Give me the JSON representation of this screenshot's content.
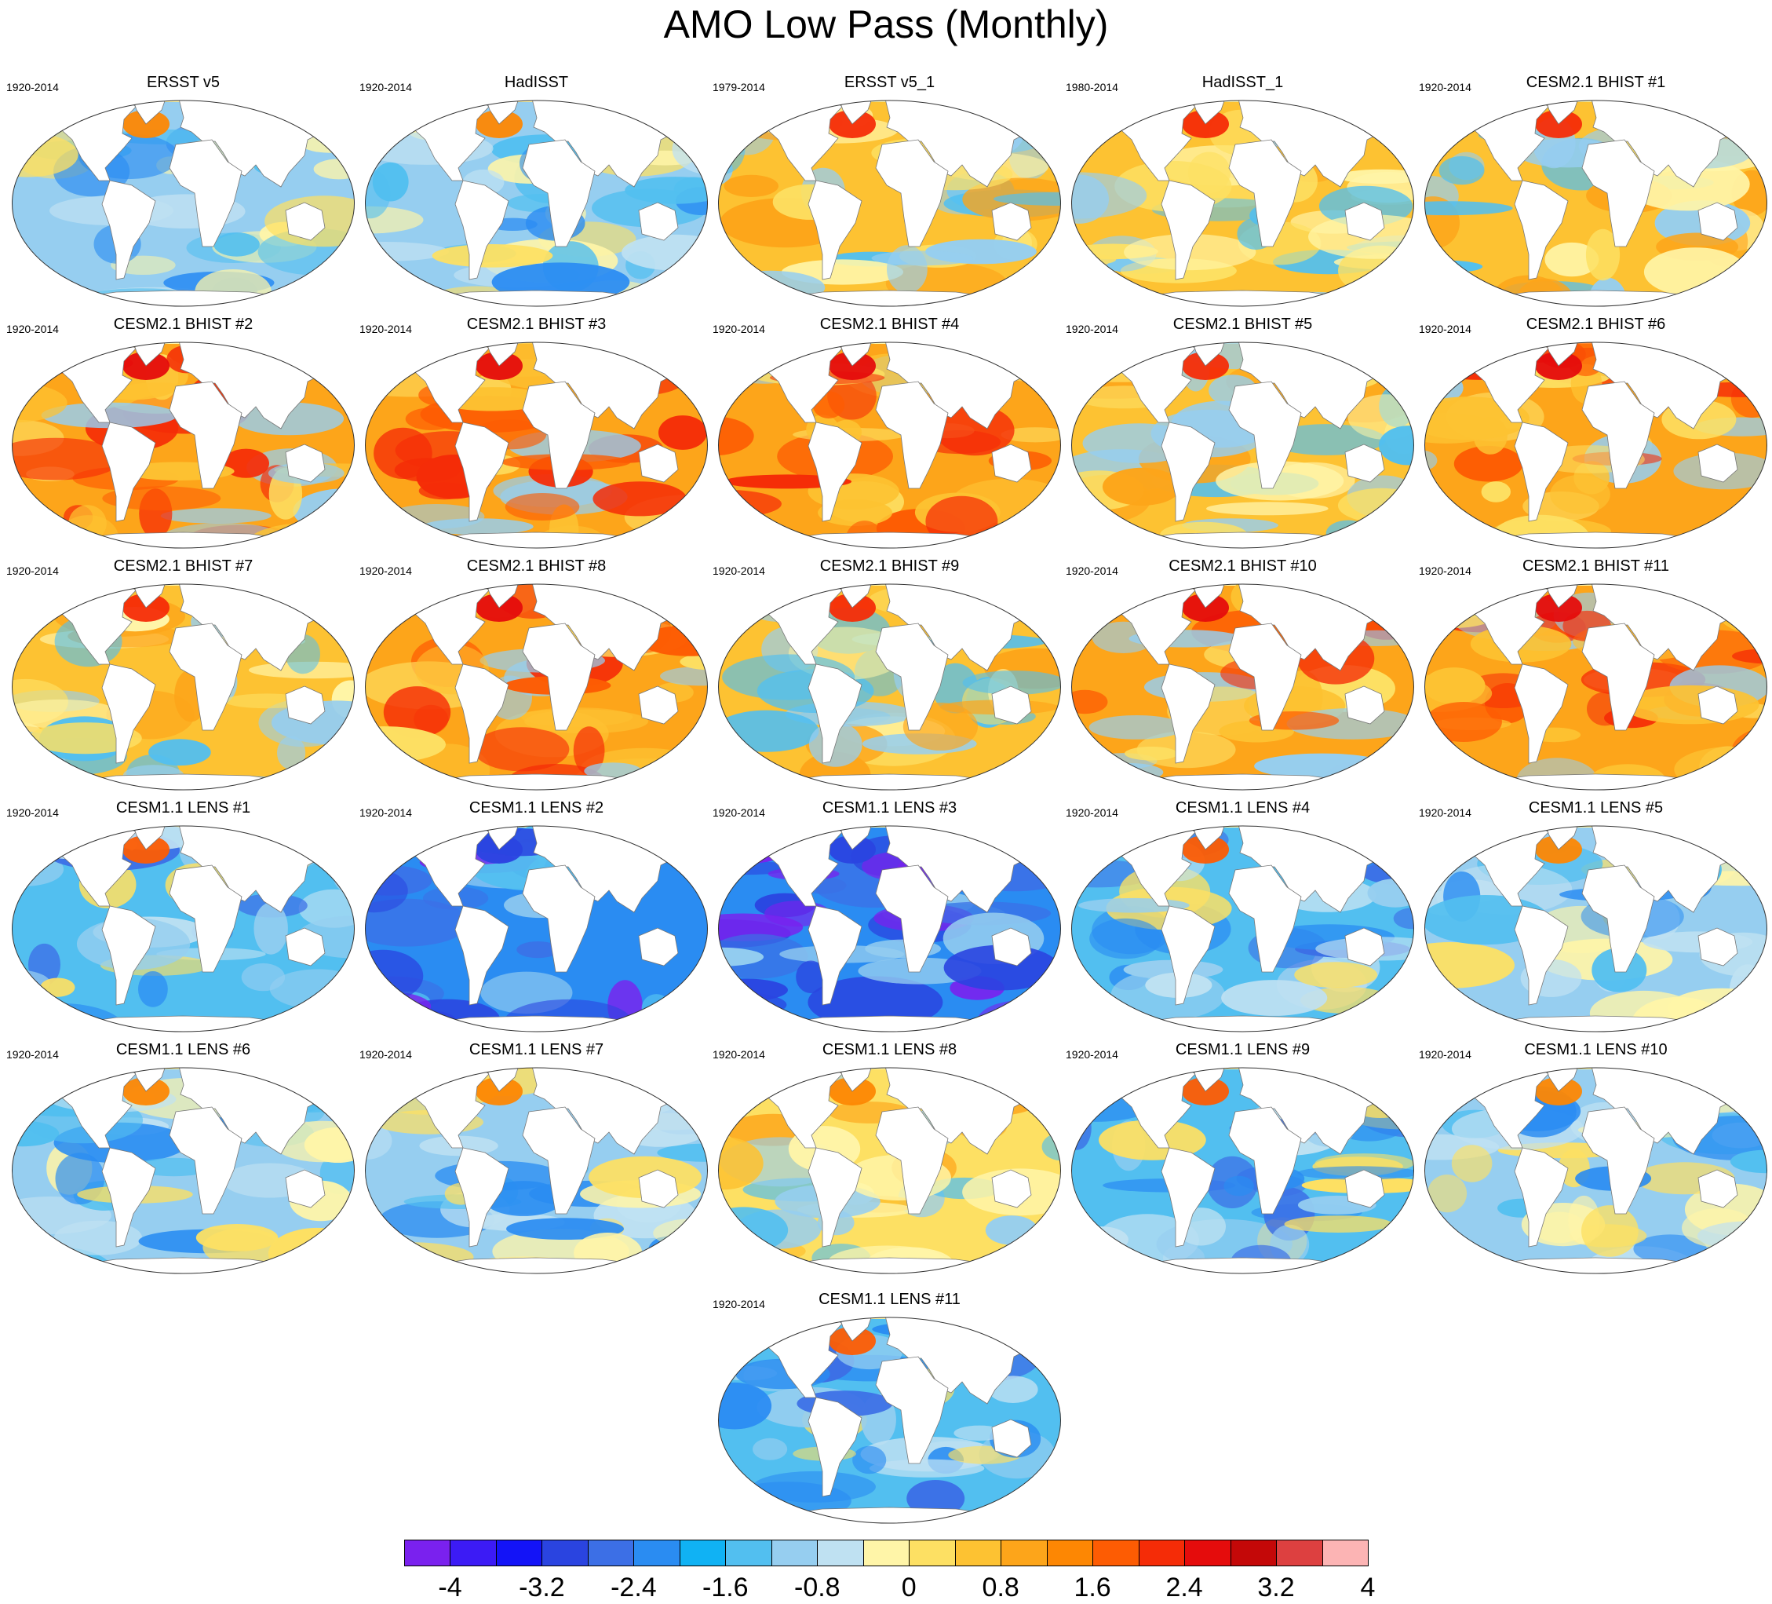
{
  "title": "AMO Low Pass (Monthly)",
  "panels": [
    {
      "title": "ERSST v5",
      "period": "1920-2014",
      "style": "obs"
    },
    {
      "title": "HadISST",
      "period": "1920-2014",
      "style": "obs"
    },
    {
      "title": "ERSST v5_1",
      "period": "1979-2014",
      "style": "warm"
    },
    {
      "title": "HadISST_1",
      "period": "1980-2014",
      "style": "warm"
    },
    {
      "title": "CESM2.1 BHIST #1",
      "period": "1920-2014",
      "style": "warm"
    },
    {
      "title": "CESM2.1 BHIST #2",
      "period": "1920-2014",
      "style": "hot"
    },
    {
      "title": "CESM2.1 BHIST #3",
      "period": "1920-2014",
      "style": "hot"
    },
    {
      "title": "CESM2.1 BHIST #4",
      "period": "1920-2014",
      "style": "hot"
    },
    {
      "title": "CESM2.1 BHIST #5",
      "period": "1920-2014",
      "style": "warm"
    },
    {
      "title": "CESM2.1 BHIST #6",
      "period": "1920-2014",
      "style": "hot"
    },
    {
      "title": "CESM2.1 BHIST #7",
      "period": "1920-2014",
      "style": "warm"
    },
    {
      "title": "CESM2.1 BHIST #8",
      "period": "1920-2014",
      "style": "hot"
    },
    {
      "title": "CESM2.1 BHIST #9",
      "period": "1920-2014",
      "style": "warm"
    },
    {
      "title": "CESM2.1 BHIST #10",
      "period": "1920-2014",
      "style": "hot"
    },
    {
      "title": "CESM2.1 BHIST #11",
      "period": "1920-2014",
      "style": "hot"
    },
    {
      "title": "CESM1.1 LENS #1",
      "period": "1920-2014",
      "style": "cold"
    },
    {
      "title": "CESM1.1 LENS #2",
      "period": "1920-2014",
      "style": "colder"
    },
    {
      "title": "CESM1.1 LENS #3",
      "period": "1920-2014",
      "style": "colder"
    },
    {
      "title": "CESM1.1 LENS #4",
      "period": "1920-2014",
      "style": "cold"
    },
    {
      "title": "CESM1.1 LENS #5",
      "period": "1920-2014",
      "style": "cool"
    },
    {
      "title": "CESM1.1 LENS #6",
      "period": "1920-2014",
      "style": "cool"
    },
    {
      "title": "CESM1.1 LENS #7",
      "period": "1920-2014",
      "style": "cool"
    },
    {
      "title": "CESM1.1 LENS #8",
      "period": "1920-2014",
      "style": "mixed"
    },
    {
      "title": "CESM1.1 LENS #9",
      "period": "1920-2014",
      "style": "cold"
    },
    {
      "title": "CESM1.1 LENS #10",
      "period": "1920-2014",
      "style": "cool"
    },
    {
      "title": "CESM1.1 LENS #11",
      "period": "1920-2014",
      "style": "cold"
    }
  ],
  "colorbar": {
    "colors": [
      "#7a21ee",
      "#3c1bf5",
      "#1313f7",
      "#2a44e0",
      "#3c6fe6",
      "#2a8cf2",
      "#10b2f4",
      "#52bff0",
      "#96cef0",
      "#bfe1f2",
      "#fff5a8",
      "#fde063",
      "#fdc232",
      "#fda51a",
      "#fd8703",
      "#fd5c03",
      "#f52c07",
      "#e50c0c",
      "#c40808",
      "#dd4040",
      "#fcb4b4"
    ],
    "labels": [
      "-4",
      "-3.2",
      "-2.4",
      "-1.6",
      "-0.8",
      "0",
      "0.8",
      "1.6",
      "2.4",
      "3.2",
      "4"
    ]
  },
  "styles": {
    "obs": {
      "base": "#96cef0",
      "blobs": [
        "#52bff0",
        "#bfe1f2",
        "#fde063",
        "#2a8cf2",
        "#fff5a8"
      ],
      "natl": "#fd8703"
    },
    "warm": {
      "base": "#fdc232",
      "blobs": [
        "#fde063",
        "#fda51a",
        "#96cef0",
        "#fff5a8",
        "#52bff0"
      ],
      "natl": "#f52c07"
    },
    "hot": {
      "base": "#fda51a",
      "blobs": [
        "#fdc232",
        "#fd5c03",
        "#fde063",
        "#96cef0",
        "#f52c07"
      ],
      "natl": "#e50c0c"
    },
    "cool": {
      "base": "#96cef0",
      "blobs": [
        "#52bff0",
        "#bfe1f2",
        "#fde063",
        "#2a8cf2",
        "#fff5a8"
      ],
      "natl": "#fd8703"
    },
    "cold": {
      "base": "#52bff0",
      "blobs": [
        "#2a8cf2",
        "#96cef0",
        "#3c6fe6",
        "#bfe1f2",
        "#fde063"
      ],
      "natl": "#fd5c03"
    },
    "colder": {
      "base": "#2a8cf2",
      "blobs": [
        "#3c6fe6",
        "#52bff0",
        "#2a44e0",
        "#7a21ee",
        "#96cef0"
      ],
      "natl": "#2a44e0"
    },
    "mixed": {
      "base": "#fde063",
      "blobs": [
        "#96cef0",
        "#fdc232",
        "#52bff0",
        "#fff5a8",
        "#fda51a"
      ],
      "natl": "#fd8703"
    }
  }
}
